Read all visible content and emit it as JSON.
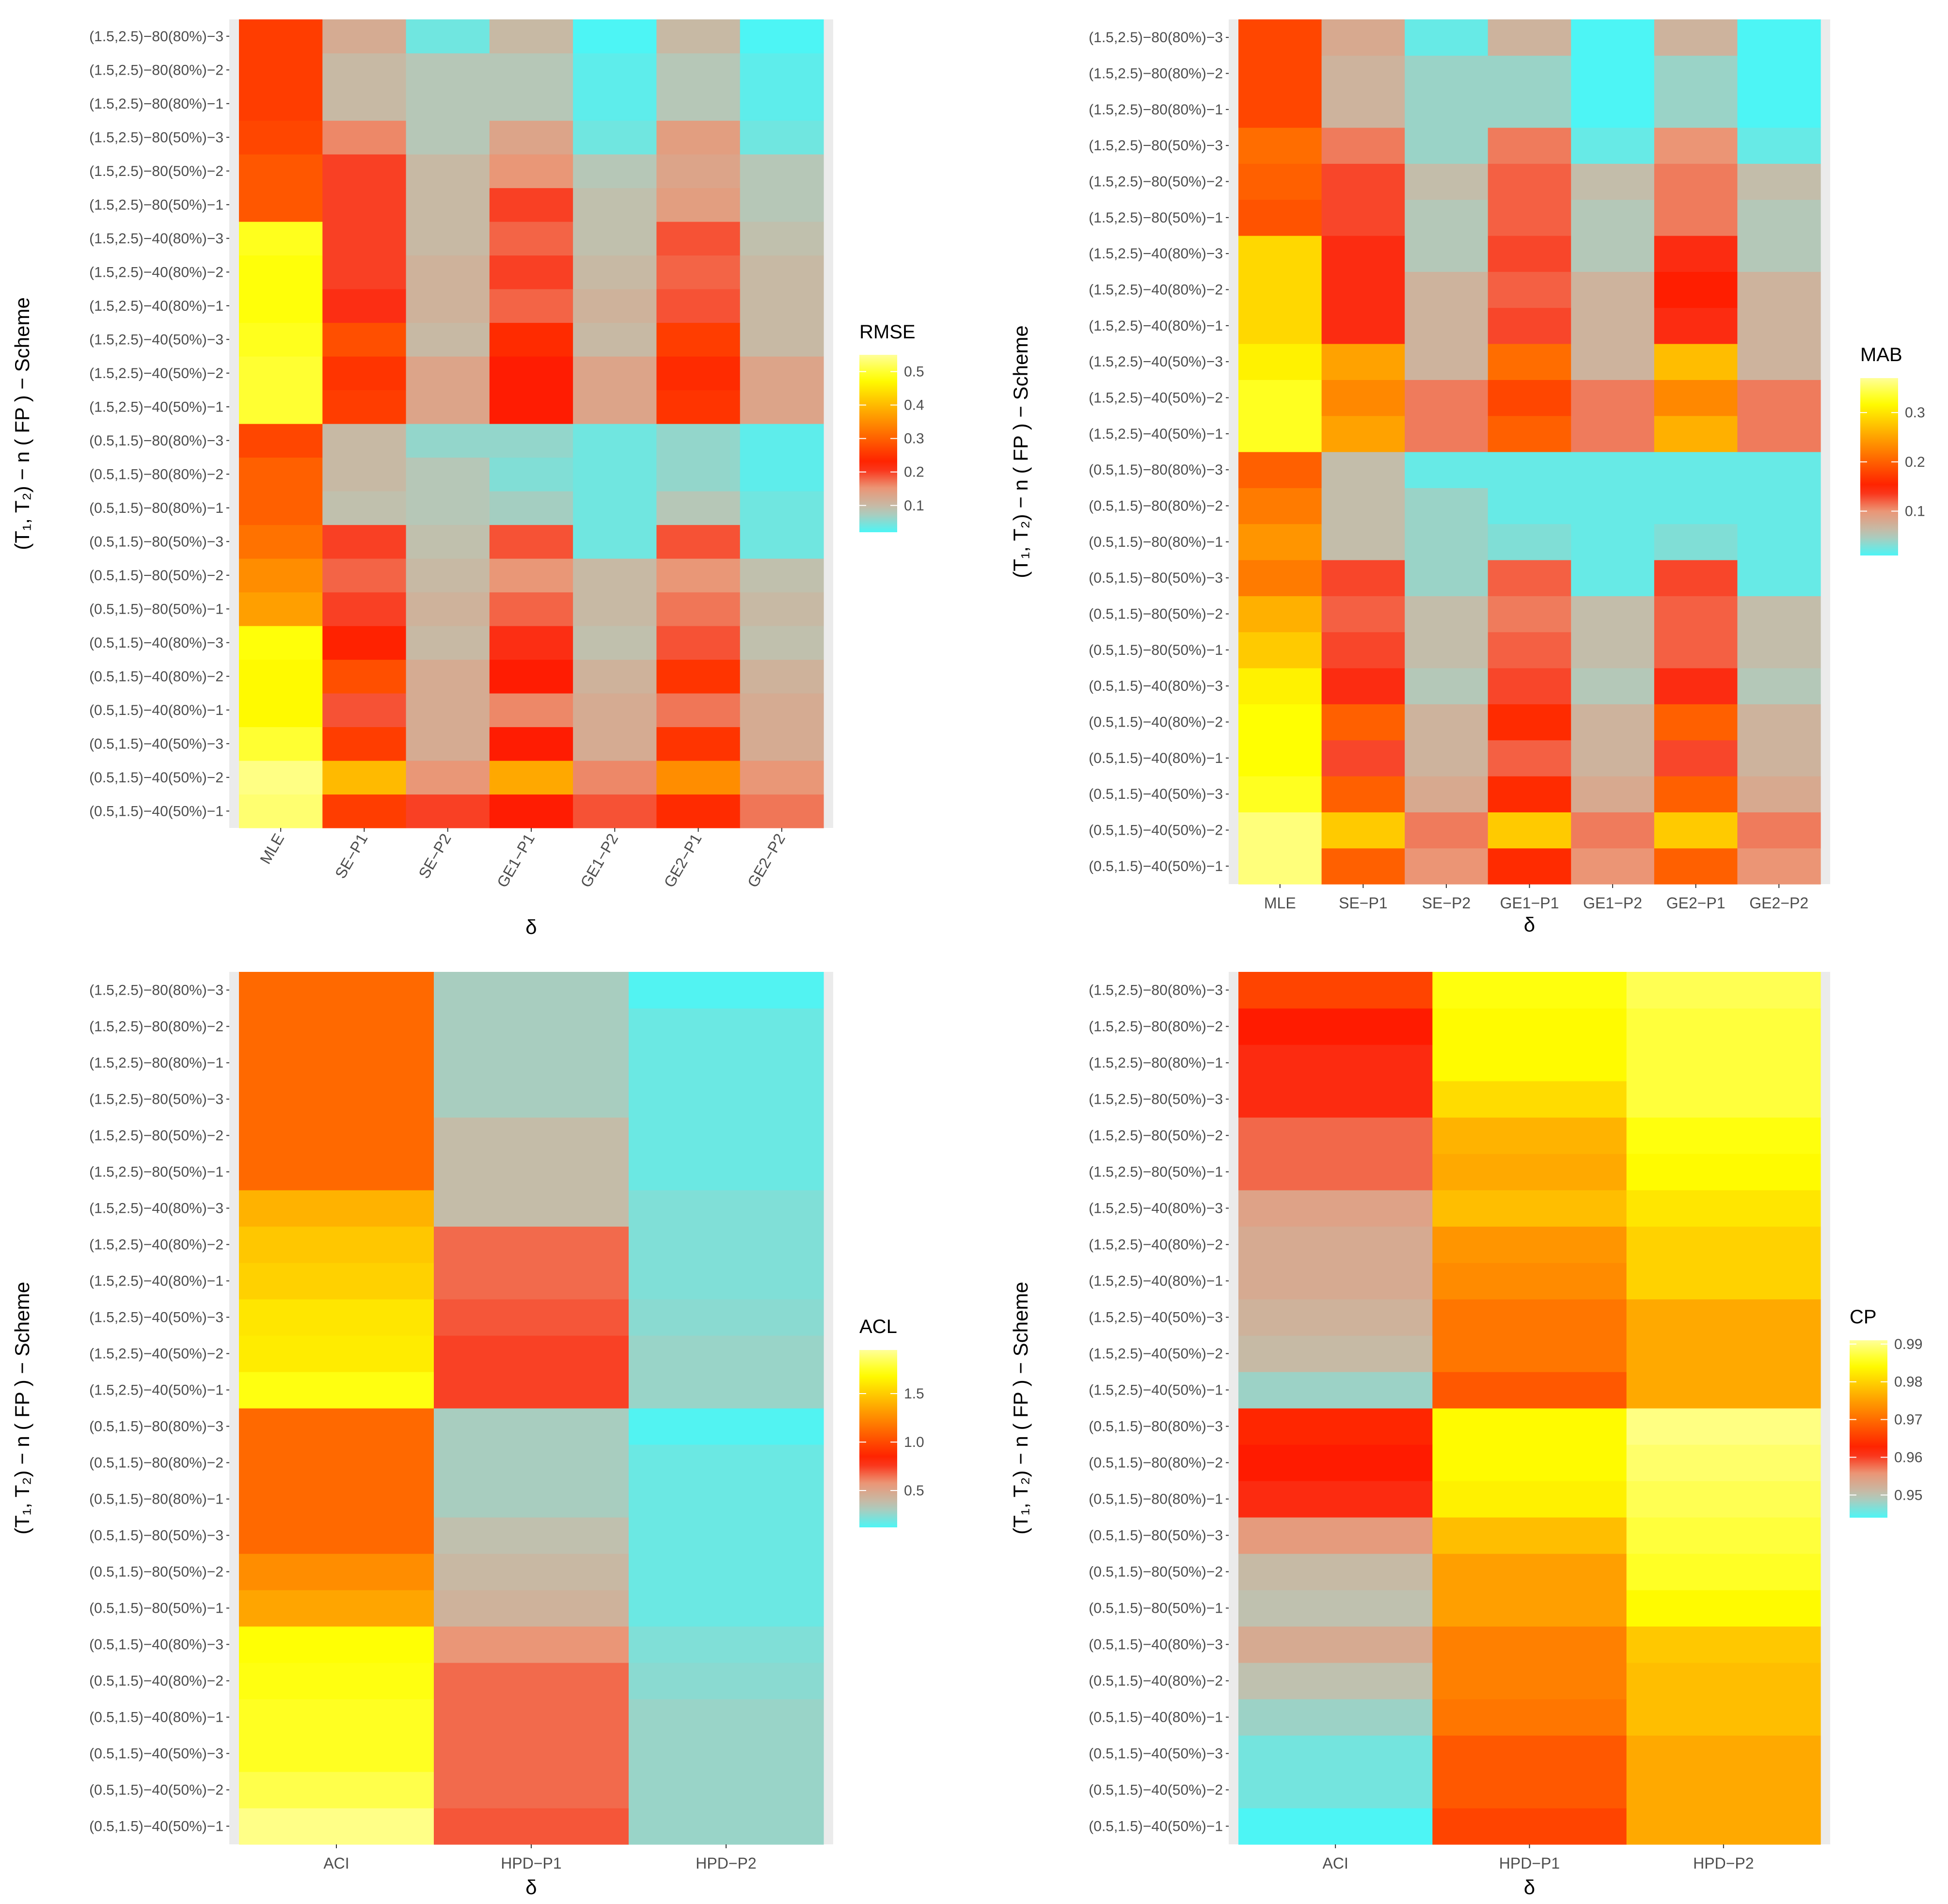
{
  "chart_data": [
    {
      "type": "heatmap",
      "id": "rmse",
      "legend_title": "RMSE",
      "xlabel": "δ",
      "ylabel": "(T₁, T₂) − n ( FP ) − Scheme",
      "x_tick_rotation": 60,
      "categories_x": [
        "MLE",
        "SE−P1",
        "SE−P2",
        "GE1−P1",
        "GE1−P2",
        "GE2−P1",
        "GE2−P2"
      ],
      "categories_y": [
        "(0.5,1.5)−40(50%)−1",
        "(0.5,1.5)−40(50%)−2",
        "(0.5,1.5)−40(50%)−3",
        "(0.5,1.5)−40(80%)−1",
        "(0.5,1.5)−40(80%)−2",
        "(0.5,1.5)−40(80%)−3",
        "(0.5,1.5)−80(50%)−1",
        "(0.5,1.5)−80(50%)−2",
        "(0.5,1.5)−80(50%)−3",
        "(0.5,1.5)−80(80%)−1",
        "(0.5,1.5)−80(80%)−2",
        "(0.5,1.5)−80(80%)−3",
        "(1.5,2.5)−40(50%)−1",
        "(1.5,2.5)−40(50%)−2",
        "(1.5,2.5)−40(50%)−3",
        "(1.5,2.5)−40(80%)−1",
        "(1.5,2.5)−40(80%)−2",
        "(1.5,2.5)−40(80%)−3",
        "(1.5,2.5)−80(50%)−1",
        "(1.5,2.5)−80(50%)−2",
        "(1.5,2.5)−80(50%)−3",
        "(1.5,2.5)−80(80%)−1",
        "(1.5,2.5)−80(80%)−2",
        "(1.5,2.5)−80(80%)−3"
      ],
      "values": [
        [
          0.53,
          0.26,
          0.2,
          0.22,
          0.19,
          0.24,
          0.17
        ],
        [
          0.54,
          0.4,
          0.15,
          0.38,
          0.16,
          0.35,
          0.15
        ],
        [
          0.5,
          0.26,
          0.12,
          0.22,
          0.12,
          0.25,
          0.12
        ],
        [
          0.47,
          0.19,
          0.12,
          0.16,
          0.12,
          0.17,
          0.12
        ],
        [
          0.47,
          0.28,
          0.12,
          0.22,
          0.11,
          0.25,
          0.11
        ],
        [
          0.48,
          0.23,
          0.1,
          0.21,
          0.09,
          0.19,
          0.09
        ],
        [
          0.37,
          0.2,
          0.11,
          0.18,
          0.1,
          0.17,
          0.1
        ],
        [
          0.35,
          0.18,
          0.1,
          0.15,
          0.1,
          0.15,
          0.09
        ],
        [
          0.32,
          0.2,
          0.09,
          0.19,
          0.04,
          0.19,
          0.04
        ],
        [
          0.3,
          0.09,
          0.08,
          0.07,
          0.04,
          0.08,
          0.04
        ],
        [
          0.3,
          0.1,
          0.08,
          0.05,
          0.04,
          0.06,
          0.03
        ],
        [
          0.27,
          0.1,
          0.06,
          0.06,
          0.04,
          0.06,
          0.03
        ],
        [
          0.5,
          0.26,
          0.13,
          0.22,
          0.13,
          0.25,
          0.13
        ],
        [
          0.5,
          0.25,
          0.13,
          0.22,
          0.13,
          0.24,
          0.13
        ],
        [
          0.49,
          0.28,
          0.1,
          0.24,
          0.1,
          0.26,
          0.1
        ],
        [
          0.48,
          0.21,
          0.11,
          0.18,
          0.11,
          0.19,
          0.1
        ],
        [
          0.48,
          0.2,
          0.11,
          0.2,
          0.1,
          0.18,
          0.1
        ],
        [
          0.49,
          0.2,
          0.1,
          0.18,
          0.09,
          0.19,
          0.09
        ],
        [
          0.29,
          0.2,
          0.1,
          0.2,
          0.09,
          0.14,
          0.08
        ],
        [
          0.29,
          0.2,
          0.1,
          0.15,
          0.08,
          0.13,
          0.08
        ],
        [
          0.27,
          0.16,
          0.08,
          0.13,
          0.04,
          0.14,
          0.04
        ],
        [
          0.26,
          0.1,
          0.08,
          0.08,
          0.03,
          0.08,
          0.03
        ],
        [
          0.26,
          0.1,
          0.08,
          0.08,
          0.03,
          0.08,
          0.03
        ],
        [
          0.26,
          0.12,
          0.04,
          0.1,
          0.02,
          0.1,
          0.02
        ]
      ],
      "vmin": 0.02,
      "vmax": 0.55,
      "legend_ticks": [
        0.1,
        0.2,
        0.3,
        0.4,
        0.5
      ]
    },
    {
      "type": "heatmap",
      "id": "mab",
      "legend_title": "MAB",
      "xlabel": "δ",
      "ylabel": "(T₁, T₂) − n ( FP ) − Scheme",
      "x_tick_rotation": 0,
      "categories_x": [
        "MLE",
        "SE−P1",
        "SE−P2",
        "GE1−P1",
        "GE1−P2",
        "GE2−P1",
        "GE2−P2"
      ],
      "categories_y": [
        "(0.5,1.5)−40(50%)−1",
        "(0.5,1.5)−40(50%)−2",
        "(0.5,1.5)−40(50%)−3",
        "(0.5,1.5)−40(80%)−1",
        "(0.5,1.5)−40(80%)−2",
        "(0.5,1.5)−40(80%)−3",
        "(0.5,1.5)−80(50%)−1",
        "(0.5,1.5)−80(50%)−2",
        "(0.5,1.5)−80(50%)−3",
        "(0.5,1.5)−80(80%)−1",
        "(0.5,1.5)−80(80%)−2",
        "(0.5,1.5)−80(80%)−3",
        "(1.5,2.5)−40(50%)−1",
        "(1.5,2.5)−40(50%)−2",
        "(1.5,2.5)−40(50%)−3",
        "(1.5,2.5)−40(80%)−1",
        "(1.5,2.5)−40(80%)−2",
        "(1.5,2.5)−40(80%)−3",
        "(1.5,2.5)−80(50%)−1",
        "(1.5,2.5)−80(50%)−2",
        "(1.5,2.5)−80(50%)−3",
        "(1.5,2.5)−80(80%)−1",
        "(1.5,2.5)−80(80%)−2",
        "(1.5,2.5)−80(80%)−3"
      ],
      "values": [
        [
          0.36,
          0.2,
          0.1,
          0.16,
          0.1,
          0.2,
          0.1
        ],
        [
          0.36,
          0.28,
          0.11,
          0.28,
          0.11,
          0.28,
          0.11
        ],
        [
          0.33,
          0.2,
          0.08,
          0.16,
          0.08,
          0.2,
          0.08
        ],
        [
          0.32,
          0.13,
          0.07,
          0.12,
          0.07,
          0.13,
          0.07
        ],
        [
          0.32,
          0.2,
          0.07,
          0.16,
          0.07,
          0.2,
          0.07
        ],
        [
          0.31,
          0.14,
          0.05,
          0.13,
          0.05,
          0.14,
          0.05
        ],
        [
          0.28,
          0.13,
          0.06,
          0.12,
          0.06,
          0.12,
          0.06
        ],
        [
          0.26,
          0.12,
          0.06,
          0.11,
          0.06,
          0.12,
          0.06
        ],
        [
          0.22,
          0.13,
          0.04,
          0.12,
          0.02,
          0.13,
          0.02
        ],
        [
          0.24,
          0.06,
          0.04,
          0.03,
          0.02,
          0.03,
          0.02
        ],
        [
          0.22,
          0.06,
          0.04,
          0.02,
          0.02,
          0.02,
          0.02
        ],
        [
          0.2,
          0.06,
          0.02,
          0.02,
          0.02,
          0.02,
          0.02
        ],
        [
          0.33,
          0.25,
          0.11,
          0.2,
          0.11,
          0.26,
          0.11
        ],
        [
          0.33,
          0.23,
          0.11,
          0.18,
          0.11,
          0.23,
          0.11
        ],
        [
          0.31,
          0.25,
          0.07,
          0.21,
          0.07,
          0.27,
          0.07
        ],
        [
          0.29,
          0.14,
          0.07,
          0.13,
          0.07,
          0.14,
          0.07
        ],
        [
          0.29,
          0.14,
          0.07,
          0.12,
          0.07,
          0.15,
          0.07
        ],
        [
          0.29,
          0.14,
          0.05,
          0.13,
          0.05,
          0.14,
          0.05
        ],
        [
          0.19,
          0.13,
          0.05,
          0.12,
          0.05,
          0.11,
          0.05
        ],
        [
          0.2,
          0.13,
          0.06,
          0.12,
          0.06,
          0.11,
          0.06
        ],
        [
          0.21,
          0.11,
          0.04,
          0.11,
          0.02,
          0.1,
          0.02
        ],
        [
          0.18,
          0.07,
          0.04,
          0.04,
          0.01,
          0.04,
          0.01
        ],
        [
          0.18,
          0.07,
          0.04,
          0.04,
          0.01,
          0.04,
          0.01
        ],
        [
          0.18,
          0.08,
          0.02,
          0.07,
          0.01,
          0.07,
          0.01
        ]
      ],
      "vmin": 0.01,
      "vmax": 0.37,
      "legend_ticks": [
        0.1,
        0.2,
        0.3
      ]
    },
    {
      "type": "heatmap",
      "id": "acl",
      "legend_title": "ACL",
      "xlabel": "δ",
      "ylabel": "(T₁, T₂) − n ( FP ) − Scheme",
      "x_tick_rotation": 0,
      "categories_x": [
        "ACI",
        "HPD−P1",
        "HPD−P2"
      ],
      "categories_y": [
        "(0.5,1.5)−40(50%)−1",
        "(0.5,1.5)−40(50%)−2",
        "(0.5,1.5)−40(50%)−3",
        "(0.5,1.5)−40(80%)−1",
        "(0.5,1.5)−40(80%)−2",
        "(0.5,1.5)−40(80%)−3",
        "(0.5,1.5)−80(50%)−1",
        "(0.5,1.5)−80(50%)−2",
        "(0.5,1.5)−80(50%)−3",
        "(0.5,1.5)−80(80%)−1",
        "(0.5,1.5)−80(80%)−2",
        "(0.5,1.5)−80(80%)−3",
        "(1.5,2.5)−40(50%)−1",
        "(1.5,2.5)−40(50%)−2",
        "(1.5,2.5)−40(50%)−3",
        "(1.5,2.5)−40(80%)−1",
        "(1.5,2.5)−40(80%)−2",
        "(1.5,2.5)−40(80%)−3",
        "(1.5,2.5)−80(50%)−1",
        "(1.5,2.5)−80(50%)−2",
        "(1.5,2.5)−80(50%)−3",
        "(1.5,2.5)−80(80%)−1",
        "(1.5,2.5)−80(80%)−2",
        "(1.5,2.5)−80(80%)−3"
      ],
      "values": [
        [
          1.92,
          0.7,
          0.27
        ],
        [
          1.82,
          0.66,
          0.27
        ],
        [
          1.75,
          0.66,
          0.27
        ],
        [
          1.75,
          0.66,
          0.27
        ],
        [
          1.72,
          0.66,
          0.24
        ],
        [
          1.7,
          0.57,
          0.22
        ],
        [
          1.35,
          0.43,
          0.18
        ],
        [
          1.26,
          0.4,
          0.18
        ],
        [
          1.12,
          0.36,
          0.18
        ],
        [
          1.12,
          0.3,
          0.18
        ],
        [
          1.12,
          0.3,
          0.18
        ],
        [
          1.12,
          0.3,
          0.13
        ],
        [
          1.72,
          0.74,
          0.27
        ],
        [
          1.62,
          0.74,
          0.27
        ],
        [
          1.6,
          0.7,
          0.24
        ],
        [
          1.52,
          0.66,
          0.22
        ],
        [
          1.48,
          0.66,
          0.22
        ],
        [
          1.4,
          0.38,
          0.22
        ],
        [
          1.12,
          0.38,
          0.18
        ],
        [
          1.12,
          0.38,
          0.18
        ],
        [
          1.12,
          0.3,
          0.18
        ],
        [
          1.12,
          0.3,
          0.18
        ],
        [
          1.12,
          0.3,
          0.18
        ],
        [
          1.12,
          0.3,
          0.13
        ]
      ],
      "vmin": 0.12,
      "vmax": 1.95,
      "legend_ticks": [
        0.5,
        1.0,
        1.5
      ]
    },
    {
      "type": "heatmap",
      "id": "cp",
      "legend_title": "CP",
      "xlabel": "δ",
      "ylabel": "(T₁, T₂) − n ( FP ) − Scheme",
      "x_tick_rotation": 0,
      "categories_x": [
        "ACI",
        "HPD−P1",
        "HPD−P2"
      ],
      "categories_y": [
        "(0.5,1.5)−40(50%)−1",
        "(0.5,1.5)−40(50%)−2",
        "(0.5,1.5)−40(50%)−3",
        "(0.5,1.5)−40(80%)−1",
        "(0.5,1.5)−40(80%)−2",
        "(0.5,1.5)−40(80%)−3",
        "(0.5,1.5)−80(50%)−1",
        "(0.5,1.5)−80(50%)−2",
        "(0.5,1.5)−80(50%)−3",
        "(0.5,1.5)−80(80%)−1",
        "(0.5,1.5)−80(80%)−2",
        "(0.5,1.5)−80(80%)−3",
        "(1.5,2.5)−40(50%)−1",
        "(1.5,2.5)−40(50%)−2",
        "(1.5,2.5)−40(50%)−3",
        "(1.5,2.5)−40(80%)−1",
        "(1.5,2.5)−40(80%)−2",
        "(1.5,2.5)−40(80%)−3",
        "(1.5,2.5)−80(50%)−1",
        "(1.5,2.5)−80(50%)−2",
        "(1.5,2.5)−80(50%)−3",
        "(1.5,2.5)−80(80%)−1",
        "(1.5,2.5)−80(80%)−2",
        "(1.5,2.5)−80(80%)−3"
      ],
      "values": [
        [
          0.944,
          0.966,
          0.976
        ],
        [
          0.946,
          0.968,
          0.976
        ],
        [
          0.946,
          0.968,
          0.976
        ],
        [
          0.948,
          0.971,
          0.978
        ],
        [
          0.95,
          0.972,
          0.978
        ],
        [
          0.953,
          0.972,
          0.979
        ],
        [
          0.95,
          0.975,
          0.984
        ],
        [
          0.951,
          0.975,
          0.986
        ],
        [
          0.955,
          0.978,
          0.987
        ],
        [
          0.961,
          0.983,
          0.988
        ],
        [
          0.962,
          0.984,
          0.989
        ],
        [
          0.963,
          0.984,
          0.99
        ],
        [
          0.948,
          0.968,
          0.976
        ],
        [
          0.951,
          0.971,
          0.976
        ],
        [
          0.952,
          0.971,
          0.976
        ],
        [
          0.953,
          0.973,
          0.98
        ],
        [
          0.953,
          0.974,
          0.98
        ],
        [
          0.954,
          0.978,
          0.982
        ],
        [
          0.958,
          0.976,
          0.984
        ],
        [
          0.958,
          0.977,
          0.985
        ],
        [
          0.961,
          0.981,
          0.987
        ],
        [
          0.961,
          0.984,
          0.987
        ],
        [
          0.962,
          0.984,
          0.987
        ],
        [
          0.966,
          0.985,
          0.988
        ]
      ],
      "vmin": 0.944,
      "vmax": 0.991,
      "legend_ticks": [
        0.95,
        0.96,
        0.97,
        0.98,
        0.99
      ]
    }
  ],
  "colors": {
    "scale_low": "#4df5f5",
    "scale_gray": "#bcc4b3",
    "scale_salmon": "#eb9575",
    "scale_red": "#ff1a00",
    "scale_orange": "#ff8c00",
    "scale_yellow": "#ffff00",
    "scale_high": "#ffff99",
    "panel_bg": "#ebebeb"
  }
}
